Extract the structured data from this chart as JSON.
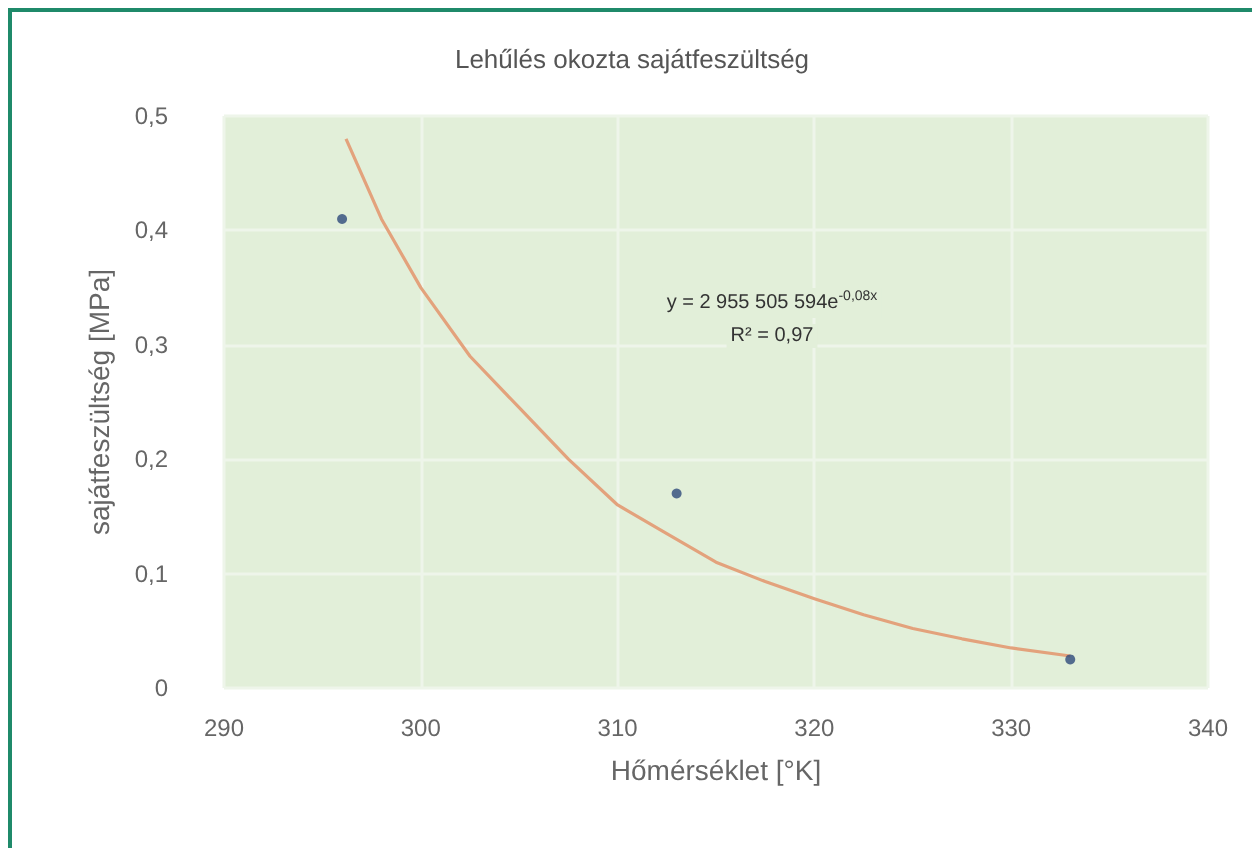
{
  "chart_data": {
    "type": "scatter",
    "title": "Lehűlés okozta sajátfeszültség",
    "xlabel": "Hőmérséklet [°K]",
    "ylabel": "sajátfeszültség [MPa]",
    "annotations": [
      "y = 2 955 505 594e$^{-0,08x}$",
      "R² = 0,97"
    ],
    "series": [
      {
        "color": "#2e4a7a",
        "x": [
          296,
          313,
          333
        ],
        "values": [
          0.41,
          0.17,
          0.025
        ]
      },
      {
        "type": "line",
        "color": "#e3a27c",
        "marker": "none",
        "x": [
          296.2,
          298,
          300,
          302.5,
          305,
          307.5,
          310,
          312.5,
          315,
          317.5,
          320,
          322.5,
          325,
          327.5,
          330,
          333
        ],
        "values": [
          0.48,
          0.41,
          0.35,
          0.29,
          0.245,
          0.2,
          0.16,
          0.135,
          0.11,
          0.093,
          0.078,
          0.064,
          0.052,
          0.043,
          0.035,
          0.028
        ]
      }
    ],
    "xlim": [
      290,
      340
    ],
    "xticks": [
      290,
      300,
      310,
      320,
      330,
      340
    ],
    "ylim": [
      0,
      0.5
    ],
    "yticks": [
      0,
      {
        "value": 0.1,
        "label": "0,1"
      },
      {
        "value": 0.2,
        "label": "0,2"
      },
      {
        "value": 0.3,
        "label": "0,3"
      },
      {
        "value": 0.4,
        "label": "0,4"
      },
      {
        "value": 0.5,
        "label": "0,5"
      }
    ],
    "grid": true,
    "marker": "circle"
  }
}
